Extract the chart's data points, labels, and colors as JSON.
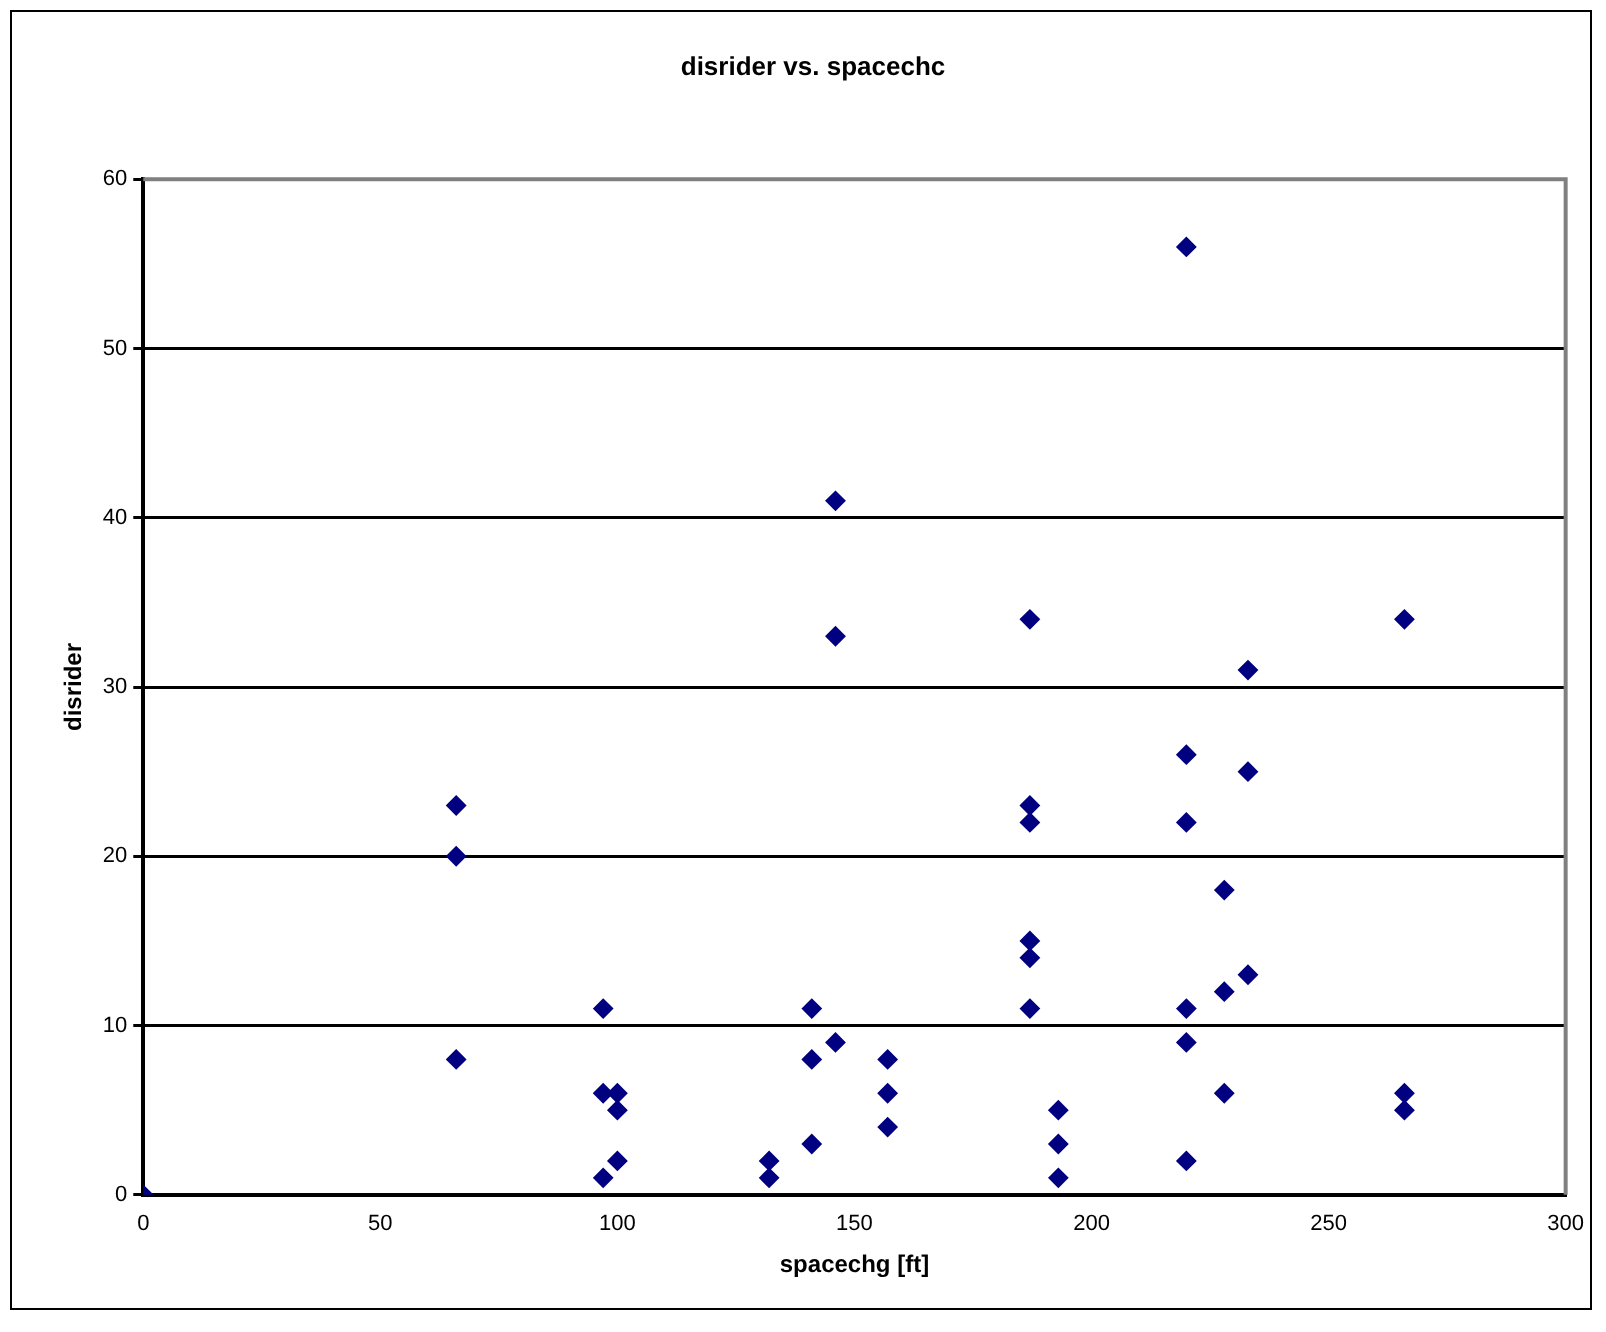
{
  "chart_data": {
    "type": "scatter",
    "title": "disrider vs. spacechc",
    "xlabel": "spacechg [ft]",
    "ylabel": "disrider",
    "x": [
      0,
      66,
      66,
      66,
      97,
      97,
      97,
      100,
      100,
      100,
      132,
      132,
      141,
      141,
      141,
      146,
      146,
      146,
      157,
      157,
      157,
      187,
      187,
      187,
      187,
      187,
      187,
      193,
      193,
      193,
      220,
      220,
      220,
      220,
      220,
      220,
      228,
      228,
      228,
      233,
      233,
      233,
      266,
      266,
      266
    ],
    "values": [
      0,
      23,
      20,
      8,
      11,
      6,
      1,
      6,
      5,
      2,
      2,
      1,
      11,
      8,
      3,
      41,
      33,
      9,
      8,
      6,
      4,
      34,
      23,
      22,
      15,
      14,
      11,
      5,
      3,
      1,
      56,
      26,
      22,
      11,
      9,
      2,
      18,
      12,
      6,
      31,
      25,
      13,
      34,
      6,
      5
    ],
    "color": "#000080",
    "marker": "diamond",
    "xlim": [
      0,
      300
    ],
    "xticks": [
      0,
      50,
      100,
      150,
      200,
      250,
      300
    ],
    "ylim": [
      0,
      60
    ],
    "yticks": [
      0,
      10,
      20,
      30,
      40,
      50,
      60
    ],
    "grid": "y",
    "legend": false
  }
}
